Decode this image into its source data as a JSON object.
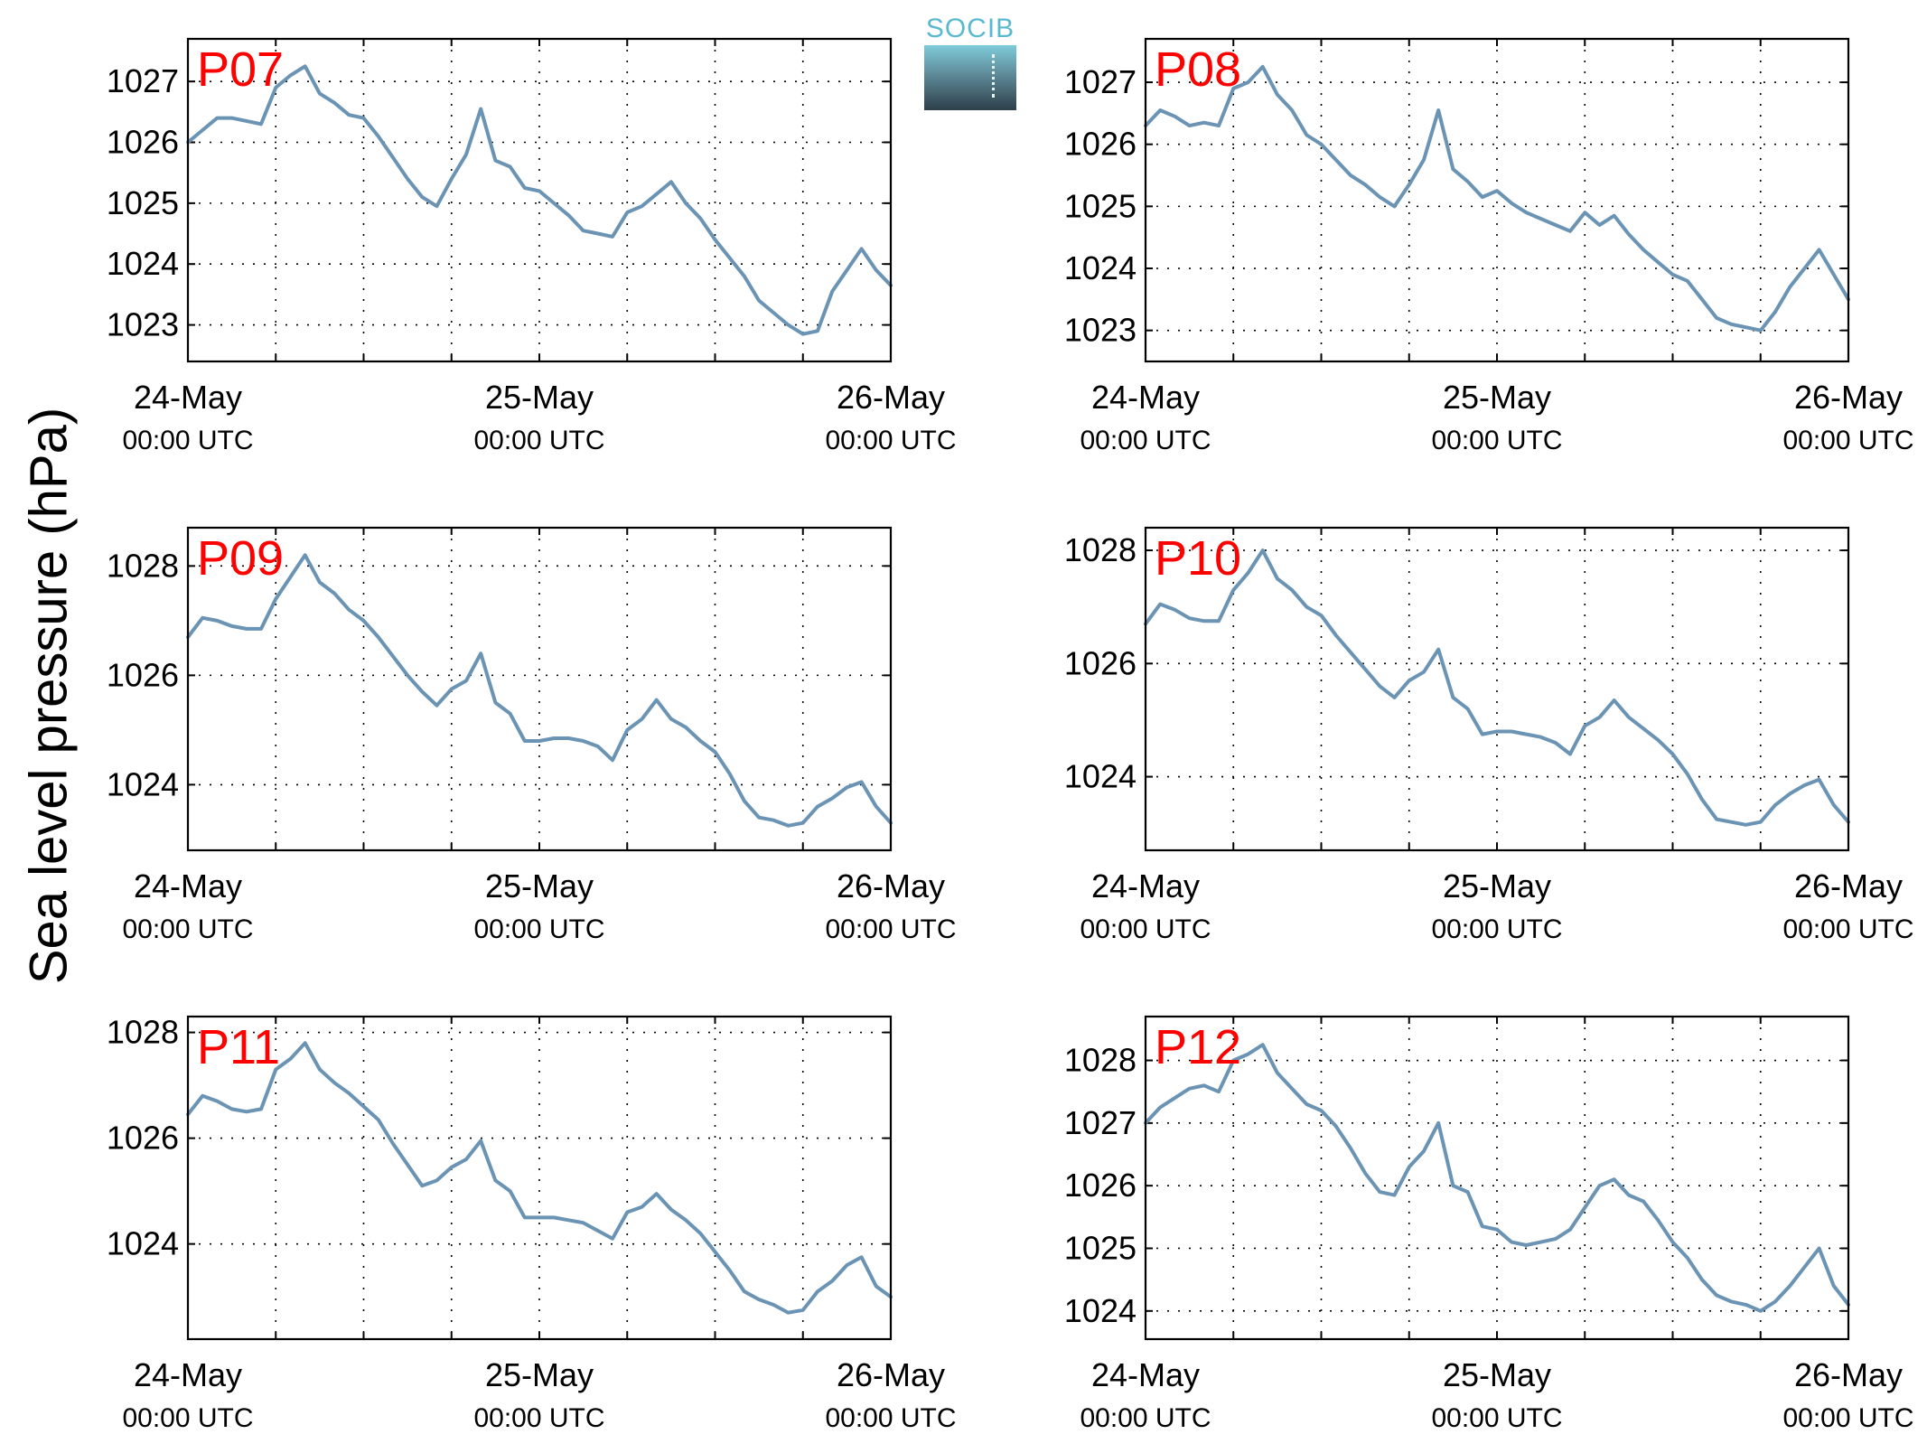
{
  "figure": {
    "ylabel": "Sea level pressure (hPa)",
    "logo_text": "SOCIB",
    "series_color": "#6a93b4",
    "station_label_color": "#ff0000"
  },
  "chart_data": [
    {
      "type": "line",
      "title": "P07",
      "xlim": [
        0,
        48
      ],
      "x_ticks": [
        0,
        24,
        48
      ],
      "x_tick_labels": [
        [
          "24-May",
          "00:00 UTC"
        ],
        [
          "25-May",
          "00:00 UTC"
        ],
        [
          "26-May",
          "00:00 UTC"
        ]
      ],
      "ylim": [
        1022.4,
        1027.7
      ],
      "y_ticks": [
        1023,
        1024,
        1025,
        1026,
        1027
      ],
      "grid": true,
      "x": [
        0,
        1,
        2,
        3,
        4,
        5,
        6,
        7,
        8,
        9,
        10,
        11,
        12,
        13,
        14,
        15,
        16,
        17,
        18,
        19,
        20,
        21,
        22,
        23,
        24,
        25,
        26,
        27,
        28,
        29,
        30,
        31,
        32,
        33,
        34,
        35,
        36,
        37,
        38,
        39,
        40,
        41,
        42,
        43,
        44,
        45,
        46,
        47,
        48
      ],
      "y": [
        1026.0,
        1026.2,
        1026.4,
        1026.4,
        1026.35,
        1026.3,
        1026.9,
        1027.1,
        1027.25,
        1026.8,
        1026.65,
        1026.45,
        1026.4,
        1026.1,
        1025.75,
        1025.4,
        1025.1,
        1024.95,
        1025.4,
        1025.8,
        1026.55,
        1025.7,
        1025.6,
        1025.25,
        1025.2,
        1025.0,
        1024.8,
        1024.55,
        1024.5,
        1024.45,
        1024.85,
        1024.95,
        1025.15,
        1025.35,
        1025.0,
        1024.75,
        1024.4,
        1024.1,
        1023.8,
        1023.4,
        1023.2,
        1023.0,
        1022.85,
        1022.9,
        1023.55,
        1023.9,
        1024.25,
        1023.9,
        1023.65
      ]
    },
    {
      "type": "line",
      "title": "P08",
      "xlim": [
        0,
        48
      ],
      "x_ticks": [
        0,
        24,
        48
      ],
      "x_tick_labels": [
        [
          "24-May",
          "00:00 UTC"
        ],
        [
          "25-May",
          "00:00 UTC"
        ],
        [
          "26-May",
          "00:00 UTC"
        ]
      ],
      "ylim": [
        1022.5,
        1027.7
      ],
      "y_ticks": [
        1023,
        1024,
        1025,
        1026,
        1027
      ],
      "grid": true,
      "x": [
        0,
        1,
        2,
        3,
        4,
        5,
        6,
        7,
        8,
        9,
        10,
        11,
        12,
        13,
        14,
        15,
        16,
        17,
        18,
        19,
        20,
        21,
        22,
        23,
        24,
        25,
        26,
        27,
        28,
        29,
        30,
        31,
        32,
        33,
        34,
        35,
        36,
        37,
        38,
        39,
        40,
        41,
        42,
        43,
        44,
        45,
        46,
        47,
        48
      ],
      "y": [
        1026.3,
        1026.55,
        1026.45,
        1026.3,
        1026.35,
        1026.3,
        1026.9,
        1027.0,
        1027.25,
        1026.8,
        1026.55,
        1026.15,
        1026.0,
        1025.75,
        1025.5,
        1025.35,
        1025.15,
        1025.0,
        1025.35,
        1025.75,
        1026.55,
        1025.6,
        1025.4,
        1025.15,
        1025.25,
        1025.05,
        1024.9,
        1024.8,
        1024.7,
        1024.6,
        1024.9,
        1024.7,
        1024.85,
        1024.55,
        1024.3,
        1024.1,
        1023.9,
        1023.8,
        1023.5,
        1023.2,
        1023.1,
        1023.05,
        1023.0,
        1023.3,
        1023.7,
        1024.0,
        1024.3,
        1023.9,
        1023.5
      ]
    },
    {
      "type": "line",
      "title": "P09",
      "xlim": [
        0,
        48
      ],
      "x_ticks": [
        0,
        24,
        48
      ],
      "x_tick_labels": [
        [
          "24-May",
          "00:00 UTC"
        ],
        [
          "25-May",
          "00:00 UTC"
        ],
        [
          "26-May",
          "00:00 UTC"
        ]
      ],
      "ylim": [
        1022.8,
        1028.7
      ],
      "y_ticks": [
        1024,
        1026,
        1028
      ],
      "grid": true,
      "x": [
        0,
        1,
        2,
        3,
        4,
        5,
        6,
        7,
        8,
        9,
        10,
        11,
        12,
        13,
        14,
        15,
        16,
        17,
        18,
        19,
        20,
        21,
        22,
        23,
        24,
        25,
        26,
        27,
        28,
        29,
        30,
        31,
        32,
        33,
        34,
        35,
        36,
        37,
        38,
        39,
        40,
        41,
        42,
        43,
        44,
        45,
        46,
        47,
        48
      ],
      "y": [
        1026.7,
        1027.05,
        1027.0,
        1026.9,
        1026.85,
        1026.85,
        1027.4,
        1027.8,
        1028.2,
        1027.7,
        1027.5,
        1027.2,
        1027.0,
        1026.7,
        1026.35,
        1026.0,
        1025.7,
        1025.45,
        1025.75,
        1025.9,
        1026.4,
        1025.5,
        1025.3,
        1024.8,
        1024.8,
        1024.85,
        1024.85,
        1024.8,
        1024.7,
        1024.45,
        1025.0,
        1025.2,
        1025.55,
        1025.2,
        1025.05,
        1024.8,
        1024.6,
        1024.2,
        1023.7,
        1023.4,
        1023.35,
        1023.25,
        1023.3,
        1023.6,
        1023.75,
        1023.95,
        1024.05,
        1023.6,
        1023.3
      ]
    },
    {
      "type": "line",
      "title": "P10",
      "xlim": [
        0,
        48
      ],
      "x_ticks": [
        0,
        24,
        48
      ],
      "x_tick_labels": [
        [
          "24-May",
          "00:00 UTC"
        ],
        [
          "25-May",
          "00:00 UTC"
        ],
        [
          "26-May",
          "00:00 UTC"
        ]
      ],
      "ylim": [
        1022.7,
        1028.4
      ],
      "y_ticks": [
        1024,
        1026,
        1028
      ],
      "grid": true,
      "x": [
        0,
        1,
        2,
        3,
        4,
        5,
        6,
        7,
        8,
        9,
        10,
        11,
        12,
        13,
        14,
        15,
        16,
        17,
        18,
        19,
        20,
        21,
        22,
        23,
        24,
        25,
        26,
        27,
        28,
        29,
        30,
        31,
        32,
        33,
        34,
        35,
        36,
        37,
        38,
        39,
        40,
        41,
        42,
        43,
        44,
        45,
        46,
        47,
        48
      ],
      "y": [
        1026.7,
        1027.05,
        1026.95,
        1026.8,
        1026.75,
        1026.75,
        1027.3,
        1027.6,
        1028.0,
        1027.5,
        1027.3,
        1027.0,
        1026.85,
        1026.5,
        1026.2,
        1025.9,
        1025.6,
        1025.4,
        1025.7,
        1025.85,
        1026.25,
        1025.4,
        1025.2,
        1024.75,
        1024.8,
        1024.8,
        1024.75,
        1024.7,
        1024.6,
        1024.4,
        1024.9,
        1025.05,
        1025.35,
        1025.05,
        1024.85,
        1024.65,
        1024.4,
        1024.05,
        1023.6,
        1023.25,
        1023.2,
        1023.15,
        1023.2,
        1023.5,
        1023.7,
        1023.85,
        1023.95,
        1023.5,
        1023.2
      ]
    },
    {
      "type": "line",
      "title": "P11",
      "xlim": [
        0,
        48
      ],
      "x_ticks": [
        0,
        24,
        48
      ],
      "x_tick_labels": [
        [
          "24-May",
          "00:00 UTC"
        ],
        [
          "25-May",
          "00:00 UTC"
        ],
        [
          "26-May",
          "00:00 UTC"
        ]
      ],
      "ylim": [
        1022.2,
        1028.3
      ],
      "y_ticks": [
        1024,
        1026,
        1028
      ],
      "grid": true,
      "x": [
        0,
        1,
        2,
        3,
        4,
        5,
        6,
        7,
        8,
        9,
        10,
        11,
        12,
        13,
        14,
        15,
        16,
        17,
        18,
        19,
        20,
        21,
        22,
        23,
        24,
        25,
        26,
        27,
        28,
        29,
        30,
        31,
        32,
        33,
        34,
        35,
        36,
        37,
        38,
        39,
        40,
        41,
        42,
        43,
        44,
        45,
        46,
        47,
        48
      ],
      "y": [
        1026.45,
        1026.8,
        1026.7,
        1026.55,
        1026.5,
        1026.55,
        1027.3,
        1027.5,
        1027.8,
        1027.3,
        1027.05,
        1026.85,
        1026.6,
        1026.35,
        1025.9,
        1025.5,
        1025.1,
        1025.2,
        1025.45,
        1025.6,
        1025.95,
        1025.2,
        1025.0,
        1024.5,
        1024.5,
        1024.5,
        1024.45,
        1024.4,
        1024.25,
        1024.1,
        1024.6,
        1024.7,
        1024.95,
        1024.65,
        1024.45,
        1024.2,
        1023.85,
        1023.5,
        1023.1,
        1022.95,
        1022.85,
        1022.7,
        1022.75,
        1023.1,
        1023.3,
        1023.6,
        1023.75,
        1023.2,
        1023.0
      ]
    },
    {
      "type": "line",
      "title": "P12",
      "xlim": [
        0,
        48
      ],
      "x_ticks": [
        0,
        24,
        48
      ],
      "x_tick_labels": [
        [
          "24-May",
          "00:00 UTC"
        ],
        [
          "25-May",
          "00:00 UTC"
        ],
        [
          "26-May",
          "00:00 UTC"
        ]
      ],
      "ylim": [
        1023.55,
        1028.7
      ],
      "y_ticks": [
        1024,
        1025,
        1026,
        1027,
        1028
      ],
      "grid": true,
      "x": [
        0,
        1,
        2,
        3,
        4,
        5,
        6,
        7,
        8,
        9,
        10,
        11,
        12,
        13,
        14,
        15,
        16,
        17,
        18,
        19,
        20,
        21,
        22,
        23,
        24,
        25,
        26,
        27,
        28,
        29,
        30,
        31,
        32,
        33,
        34,
        35,
        36,
        37,
        38,
        39,
        40,
        41,
        42,
        43,
        44,
        45,
        46,
        47,
        48
      ],
      "y": [
        1027.0,
        1027.25,
        1027.4,
        1027.55,
        1027.6,
        1027.5,
        1028.0,
        1028.1,
        1028.25,
        1027.8,
        1027.55,
        1027.3,
        1027.2,
        1026.95,
        1026.6,
        1026.2,
        1025.9,
        1025.85,
        1026.3,
        1026.55,
        1027.0,
        1026.0,
        1025.9,
        1025.35,
        1025.3,
        1025.1,
        1025.05,
        1025.1,
        1025.15,
        1025.3,
        1025.65,
        1026.0,
        1026.1,
        1025.85,
        1025.75,
        1025.45,
        1025.1,
        1024.85,
        1024.5,
        1024.25,
        1024.15,
        1024.1,
        1024.0,
        1024.15,
        1024.4,
        1024.7,
        1025.0,
        1024.4,
        1024.1
      ]
    }
  ]
}
